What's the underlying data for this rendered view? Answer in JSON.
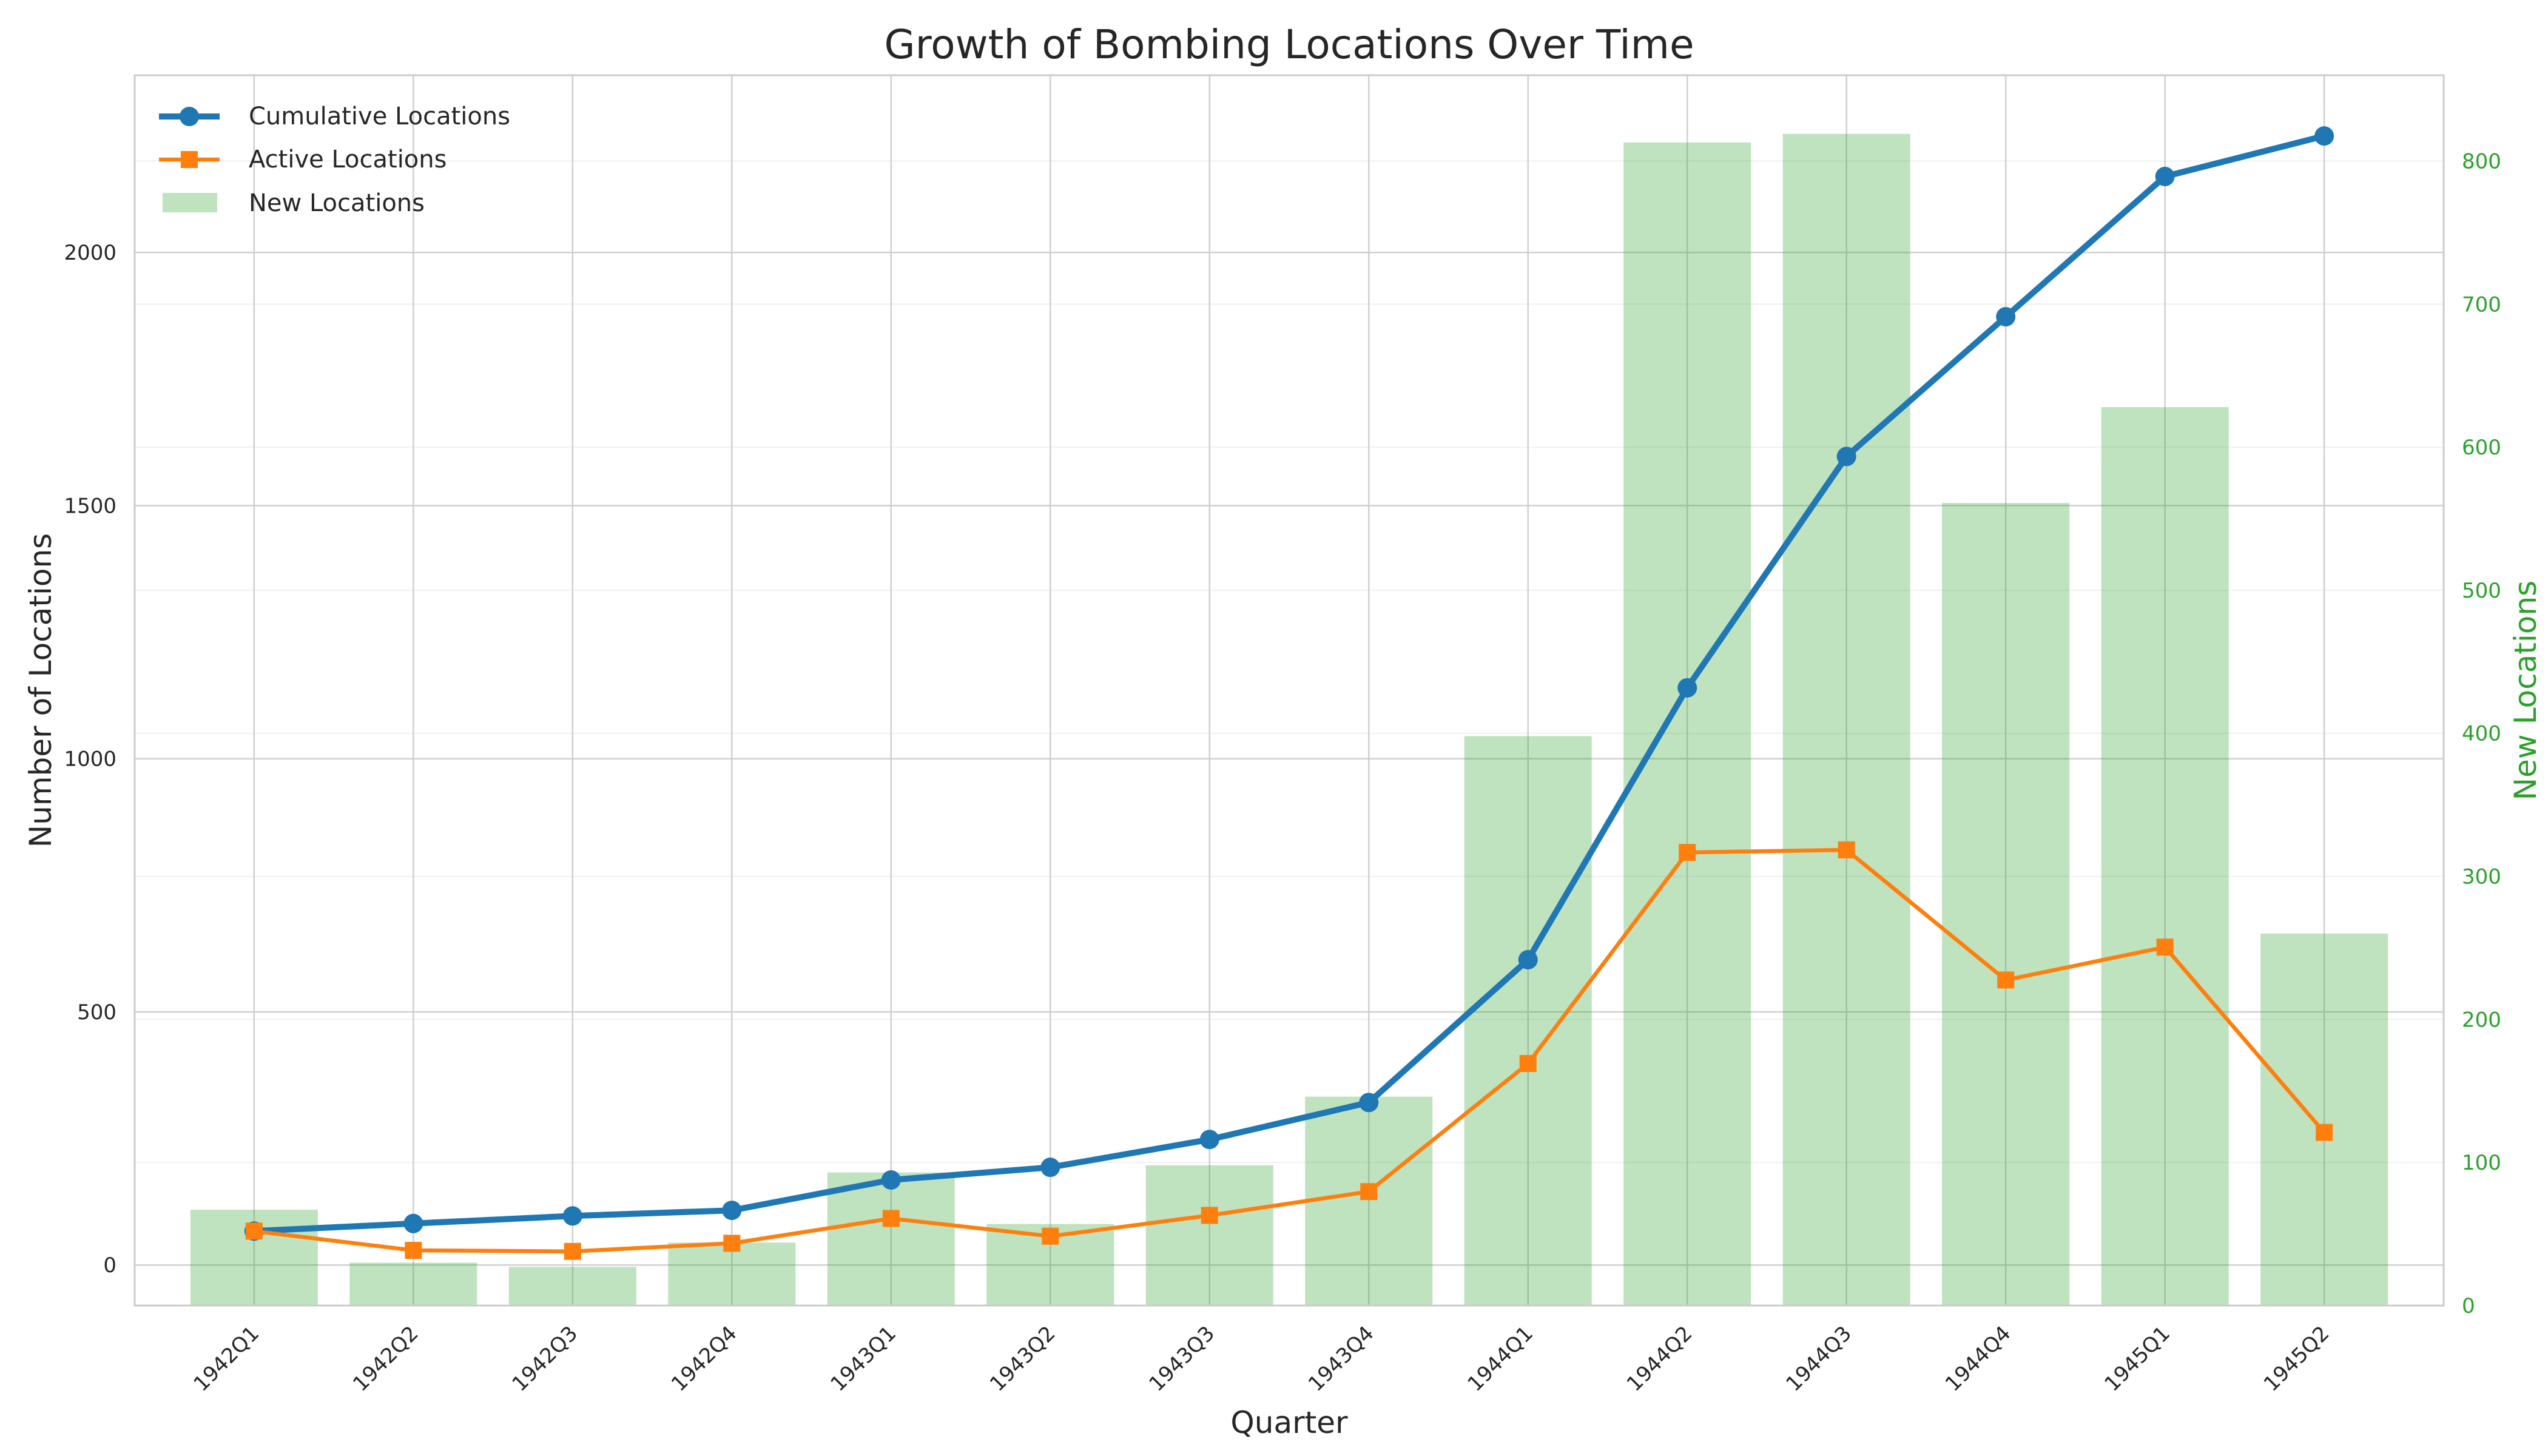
{
  "chart_data": {
    "type": "bar+line",
    "title": "Growth of Bombing Locations Over Time",
    "xlabel": "Quarter",
    "ylabel": "Number of Locations",
    "ylabel_right": "New Locations",
    "categories": [
      "1942Q1",
      "1942Q2",
      "1942Q3",
      "1942Q4",
      "1943Q1",
      "1943Q2",
      "1943Q3",
      "1943Q4",
      "1944Q1",
      "1944Q2",
      "1944Q3",
      "1944Q4",
      "1945Q1",
      "1945Q2"
    ],
    "ylim": [
      -80,
      2350
    ],
    "ylim_right": [
      0,
      860
    ],
    "yticks": [
      0,
      500,
      1000,
      1500,
      2000
    ],
    "yticks_right": [
      0,
      100,
      200,
      300,
      400,
      500,
      600,
      700,
      800
    ],
    "grid": true,
    "legend_position": "top-left",
    "series": [
      {
        "name": "Cumulative Locations",
        "axis": "left",
        "style": "line",
        "marker": "circle",
        "color": "#1f77b4",
        "values": [
          67,
          82,
          97,
          108,
          168,
          193,
          248,
          321,
          603,
          1140,
          1597,
          1873,
          2150,
          2230
        ]
      },
      {
        "name": "Active Locations",
        "axis": "left",
        "style": "line",
        "marker": "square",
        "color": "#ff7f0e",
        "values": [
          67,
          29,
          27,
          43,
          92,
          57,
          98,
          145,
          398,
          815,
          820,
          563,
          628,
          262
        ]
      },
      {
        "name": "New Locations",
        "axis": "right",
        "style": "bar",
        "color": "#2ca02c",
        "values": [
          67,
          30,
          27,
          44,
          93,
          57,
          98,
          146,
          398,
          813,
          819,
          561,
          628,
          260
        ]
      }
    ]
  }
}
